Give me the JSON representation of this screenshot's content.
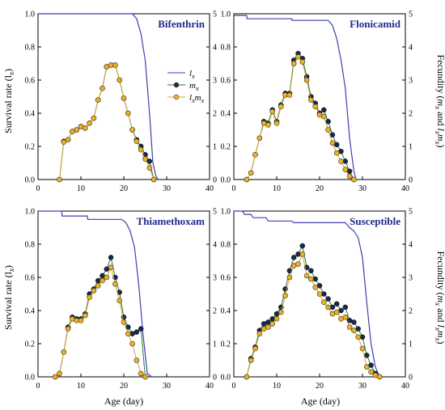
{
  "figure": {
    "xlabel": "Age (day)",
    "ylabel_left": "Survival rate (l",
    "ylabel_left_sub": "x",
    "ylabel_right_parts": [
      "Fecundity (",
      "m",
      "x",
      " and ",
      "l",
      "x",
      "m",
      "x",
      ")"
    ],
    "colors": {
      "lx": "#3b3fb0",
      "mx_fill": "#1a2a48",
      "mx_line": "#2a7a3a",
      "lxmx_fill": "#f2b01e",
      "lxmx_line": "#c9a83a",
      "title": "#1f2a8c"
    }
  },
  "chart_data": [
    {
      "type": "line",
      "title": "Bifenthrin",
      "xlim": [
        0,
        40
      ],
      "xticks": [
        0,
        10,
        20,
        30,
        40
      ],
      "ylim_left": [
        0,
        1.0
      ],
      "yticks_left": [
        "0.0",
        "0.2",
        "0.4",
        "0.6",
        "0.8",
        "1.0"
      ],
      "ylim_right": [
        0,
        5
      ],
      "yticks_right": [
        "0",
        "1",
        "2",
        "3",
        "4",
        "5"
      ],
      "legend": {
        "placement": "center-right",
        "entries": [
          {
            "key": "lx",
            "base": "l",
            "sub": "x"
          },
          {
            "key": "mx",
            "base": "m",
            "sub": "x"
          },
          {
            "key": "lxmx",
            "base": "l",
            "sub": "x",
            "base2": "m",
            "sub2": "x"
          }
        ]
      },
      "series": {
        "lx": [
          [
            0,
            1.0
          ],
          [
            22.0,
            1.0
          ],
          [
            23.0,
            0.97
          ],
          [
            24.0,
            0.88
          ],
          [
            25.0,
            0.72
          ],
          [
            26.0,
            0.4
          ],
          [
            26.8,
            0.1
          ],
          [
            27.5,
            0.02
          ],
          [
            28.0,
            0.0
          ]
        ],
        "mx": [
          [
            5,
            0.0
          ],
          [
            6,
            1.15
          ],
          [
            7,
            1.2
          ],
          [
            8,
            1.45
          ],
          [
            9,
            1.5
          ],
          [
            10,
            1.6
          ],
          [
            11,
            1.55
          ],
          [
            12,
            1.7
          ],
          [
            13,
            1.85
          ],
          [
            14,
            2.4
          ],
          [
            15,
            2.75
          ],
          [
            16,
            3.4
          ],
          [
            17,
            3.45
          ],
          [
            18,
            3.45
          ],
          [
            19,
            3.0
          ],
          [
            20,
            2.45
          ],
          [
            21,
            2.0
          ],
          [
            22,
            1.5
          ],
          [
            23,
            1.2
          ],
          [
            24,
            1.0
          ],
          [
            25,
            0.75
          ],
          [
            26,
            0.55
          ],
          [
            27,
            0.0
          ]
        ],
        "lxmx": [
          [
            5,
            0.0
          ],
          [
            6,
            1.13
          ],
          [
            7,
            1.2
          ],
          [
            8,
            1.45
          ],
          [
            9,
            1.5
          ],
          [
            10,
            1.6
          ],
          [
            11,
            1.55
          ],
          [
            12,
            1.7
          ],
          [
            13,
            1.85
          ],
          [
            14,
            2.4
          ],
          [
            15,
            2.75
          ],
          [
            16,
            3.4
          ],
          [
            17,
            3.45
          ],
          [
            18,
            3.45
          ],
          [
            19,
            3.0
          ],
          [
            20,
            2.45
          ],
          [
            21,
            2.0
          ],
          [
            22,
            1.5
          ],
          [
            23,
            1.15
          ],
          [
            24,
            0.9
          ],
          [
            25,
            0.62
          ],
          [
            26,
            0.35
          ],
          [
            27,
            0.0
          ]
        ]
      }
    },
    {
      "type": "line",
      "title": "Flonicamid",
      "xlim": [
        0,
        40
      ],
      "xticks": [
        0,
        10,
        20,
        30,
        40
      ],
      "ylim_left": [
        0,
        1.0
      ],
      "yticks_left": [
        "0.0",
        "0.2",
        "0.4",
        "0.6",
        "0.8",
        "1.0"
      ],
      "ylim_right": [
        0,
        5
      ],
      "yticks_right": [
        "0",
        "1",
        "2",
        "3",
        "4",
        "5"
      ],
      "series": {
        "lx": [
          [
            0,
            0.99
          ],
          [
            3,
            0.99
          ],
          [
            3.1,
            0.97
          ],
          [
            13.5,
            0.97
          ],
          [
            13.6,
            0.96
          ],
          [
            22,
            0.96
          ],
          [
            23,
            0.93
          ],
          [
            24,
            0.85
          ],
          [
            25,
            0.72
          ],
          [
            26,
            0.55
          ],
          [
            27,
            0.25
          ],
          [
            28,
            0.05
          ],
          [
            28.5,
            0.0
          ]
        ],
        "mx": [
          [
            3,
            0.0
          ],
          [
            4,
            0.2
          ],
          [
            5,
            0.75
          ],
          [
            6,
            1.25
          ],
          [
            7,
            1.75
          ],
          [
            8,
            1.7
          ],
          [
            9,
            2.1
          ],
          [
            10,
            1.75
          ],
          [
            11,
            2.25
          ],
          [
            12,
            2.6
          ],
          [
            13,
            2.6
          ],
          [
            14,
            3.6
          ],
          [
            15,
            3.8
          ],
          [
            16,
            3.65
          ],
          [
            17,
            3.1
          ],
          [
            18,
            2.5
          ],
          [
            19,
            2.3
          ],
          [
            20,
            2.0
          ],
          [
            21,
            2.1
          ],
          [
            22,
            1.75
          ],
          [
            23,
            1.35
          ],
          [
            24,
            1.05
          ],
          [
            25,
            0.85
          ],
          [
            26,
            0.55
          ],
          [
            27,
            0.25
          ],
          [
            28,
            0.0
          ]
        ],
        "lxmx": [
          [
            3,
            0.0
          ],
          [
            4,
            0.2
          ],
          [
            5,
            0.75
          ],
          [
            6,
            1.25
          ],
          [
            7,
            1.7
          ],
          [
            8,
            1.65
          ],
          [
            9,
            2.05
          ],
          [
            10,
            1.7
          ],
          [
            11,
            2.2
          ],
          [
            12,
            2.55
          ],
          [
            13,
            2.55
          ],
          [
            14,
            3.5
          ],
          [
            15,
            3.7
          ],
          [
            16,
            3.55
          ],
          [
            17,
            3.0
          ],
          [
            18,
            2.4
          ],
          [
            19,
            2.2
          ],
          [
            20,
            1.95
          ],
          [
            21,
            1.9
          ],
          [
            22,
            1.5
          ],
          [
            23,
            1.1
          ],
          [
            24,
            0.8
          ],
          [
            25,
            0.55
          ],
          [
            26,
            0.3
          ],
          [
            27,
            0.1
          ],
          [
            28,
            0.0
          ]
        ]
      }
    },
    {
      "type": "line",
      "title": "Thiamethoxam",
      "xlim": [
        0,
        40
      ],
      "xticks": [
        0,
        10,
        20,
        30,
        40
      ],
      "ylim_left": [
        0,
        1.0
      ],
      "yticks_left": [
        "0.0",
        "0.2",
        "0.4",
        "0.6",
        "0.8",
        "1.0"
      ],
      "ylim_right": [
        0,
        5
      ],
      "yticks_right": [
        "0",
        "1",
        "2",
        "3",
        "4",
        "5"
      ],
      "series": {
        "lx": [
          [
            0,
            1.0
          ],
          [
            5.5,
            1.0
          ],
          [
            5.6,
            0.97
          ],
          [
            11.5,
            0.97
          ],
          [
            11.6,
            0.95
          ],
          [
            19.5,
            0.95
          ],
          [
            20.5,
            0.93
          ],
          [
            21.5,
            0.88
          ],
          [
            22.5,
            0.78
          ],
          [
            23.5,
            0.55
          ],
          [
            24.5,
            0.25
          ],
          [
            25.5,
            0.02
          ],
          [
            26.5,
            0.0
          ]
        ],
        "mx": [
          [
            4,
            0.0
          ],
          [
            5,
            0.1
          ],
          [
            6,
            0.75
          ],
          [
            7,
            1.5
          ],
          [
            8,
            1.8
          ],
          [
            9,
            1.75
          ],
          [
            10,
            1.75
          ],
          [
            11,
            1.9
          ],
          [
            12,
            2.5
          ],
          [
            13,
            2.65
          ],
          [
            14,
            2.9
          ],
          [
            15,
            3.05
          ],
          [
            16,
            3.25
          ],
          [
            17,
            3.6
          ],
          [
            18,
            3.0
          ],
          [
            19,
            2.55
          ],
          [
            20,
            1.8
          ],
          [
            21,
            1.5
          ],
          [
            22,
            1.3
          ],
          [
            23,
            1.35
          ],
          [
            24,
            1.45
          ],
          [
            25,
            0.0
          ]
        ],
        "lxmx": [
          [
            4,
            0.0
          ],
          [
            5,
            0.1
          ],
          [
            6,
            0.75
          ],
          [
            7,
            1.45
          ],
          [
            8,
            1.75
          ],
          [
            9,
            1.7
          ],
          [
            10,
            1.7
          ],
          [
            11,
            1.85
          ],
          [
            12,
            2.4
          ],
          [
            13,
            2.6
          ],
          [
            14,
            2.75
          ],
          [
            15,
            2.9
          ],
          [
            16,
            3.0
          ],
          [
            17,
            3.3
          ],
          [
            18,
            2.8
          ],
          [
            19,
            2.3
          ],
          [
            20,
            1.65
          ],
          [
            21,
            1.3
          ],
          [
            22,
            1.0
          ],
          [
            23,
            0.5
          ],
          [
            24,
            0.1
          ],
          [
            25,
            0.0
          ]
        ]
      }
    },
    {
      "type": "line",
      "title": "Susceptible",
      "xlim": [
        0,
        40
      ],
      "xticks": [
        0,
        10,
        20,
        30,
        40
      ],
      "ylim_left": [
        0,
        1.0
      ],
      "yticks_left": [
        "0.0",
        "0.2",
        "0.4",
        "0.6",
        "0.8",
        "1.0"
      ],
      "ylim_right": [
        0,
        5
      ],
      "yticks_right": [
        "0",
        "1",
        "2",
        "3",
        "4",
        "5"
      ],
      "series": {
        "lx": [
          [
            0,
            1.0
          ],
          [
            2,
            1.0
          ],
          [
            2.5,
            0.98
          ],
          [
            4,
            0.98
          ],
          [
            4.5,
            0.96
          ],
          [
            7.5,
            0.96
          ],
          [
            8,
            0.94
          ],
          [
            13.5,
            0.94
          ],
          [
            14,
            0.93
          ],
          [
            26,
            0.93
          ],
          [
            27,
            0.9
          ],
          [
            28,
            0.88
          ],
          [
            29,
            0.84
          ],
          [
            30,
            0.72
          ],
          [
            31,
            0.45
          ],
          [
            32,
            0.2
          ],
          [
            33,
            0.06
          ],
          [
            34,
            0.0
          ]
        ],
        "mx": [
          [
            3,
            0.0
          ],
          [
            4,
            0.55
          ],
          [
            5,
            0.9
          ],
          [
            6,
            1.4
          ],
          [
            7,
            1.6
          ],
          [
            8,
            1.65
          ],
          [
            9,
            1.75
          ],
          [
            10,
            1.9
          ],
          [
            11,
            2.1
          ],
          [
            12,
            2.65
          ],
          [
            13,
            3.2
          ],
          [
            14,
            3.6
          ],
          [
            15,
            3.7
          ],
          [
            16,
            3.95
          ],
          [
            17,
            3.3
          ],
          [
            18,
            3.2
          ],
          [
            19,
            2.95
          ],
          [
            20,
            2.75
          ],
          [
            21,
            2.5
          ],
          [
            22,
            2.35
          ],
          [
            23,
            2.1
          ],
          [
            24,
            2.2
          ],
          [
            25,
            2.0
          ],
          [
            26,
            2.1
          ],
          [
            27,
            1.7
          ],
          [
            28,
            1.65
          ],
          [
            29,
            1.45
          ],
          [
            30,
            1.2
          ],
          [
            31,
            0.65
          ],
          [
            32,
            0.35
          ],
          [
            33,
            0.1
          ],
          [
            34,
            0.0
          ]
        ],
        "lxmx": [
          [
            3,
            0.0
          ],
          [
            4,
            0.5
          ],
          [
            5,
            0.85
          ],
          [
            6,
            1.3
          ],
          [
            7,
            1.45
          ],
          [
            8,
            1.5
          ],
          [
            9,
            1.6
          ],
          [
            10,
            1.75
          ],
          [
            11,
            1.95
          ],
          [
            12,
            2.45
          ],
          [
            13,
            3.0
          ],
          [
            14,
            3.35
          ],
          [
            15,
            3.4
          ],
          [
            16,
            3.7
          ],
          [
            17,
            3.05
          ],
          [
            18,
            2.95
          ],
          [
            19,
            2.7
          ],
          [
            20,
            2.5
          ],
          [
            21,
            2.25
          ],
          [
            22,
            2.1
          ],
          [
            23,
            1.9
          ],
          [
            24,
            1.95
          ],
          [
            25,
            1.75
          ],
          [
            26,
            1.8
          ],
          [
            27,
            1.5
          ],
          [
            28,
            1.4
          ],
          [
            29,
            1.2
          ],
          [
            30,
            0.85
          ],
          [
            31,
            0.3
          ],
          [
            32,
            0.15
          ],
          [
            33,
            0.05
          ],
          [
            34,
            0.0
          ]
        ]
      }
    }
  ]
}
